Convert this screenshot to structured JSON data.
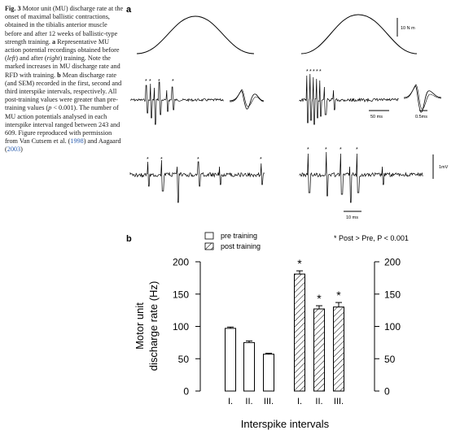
{
  "caption": {
    "fig_label": "Fig. 3",
    "seg1": "Motor unit (MU) discharge rate at the onset of maximal ballistic contractions, obtained in the tibialis anterior muscle before and after 12 weeks of ballistic-type strength training.",
    "a_label": "a",
    "seg2": "Representative MU action potential recordings obtained before (",
    "left_word": "left",
    "seg3": ") and after (",
    "right_word": "right",
    "seg4": ") training. Note the marked increases in MU discharge rate and RFD with training.",
    "b_label": "b",
    "seg5": "Mean discharge rate (and SEM) recorded in the first, second and third interspike intervals, respectively. All post-training values were greater than pre-training values (",
    "p_var": "p",
    "seg6": " < 0.001). The number of MU action potentials analysed in each interspike interval ranged between 243 and 609. Figure reproduced with permission from Van Cutsem et al. (",
    "ref1": "1998",
    "seg7": ") and Aagaard (",
    "ref2": "2003",
    "seg8": ")"
  },
  "panel_a": {
    "label": "a",
    "force_scale": "10 N m",
    "time_scale_1": "50 ms",
    "time_scale_2": "0.5ms",
    "voltage_scale": "1mV",
    "time_scale_3": "10 ms",
    "star": "*"
  },
  "panel_b": {
    "label": "b",
    "legend": {
      "pre": "pre training",
      "post": "post training",
      "note": "* Post > Pre, P < 0.001"
    }
  },
  "chart_data": {
    "type": "bar",
    "categories": [
      "I.",
      "II.",
      "III.",
      "I.",
      "II.",
      "III."
    ],
    "series": [
      {
        "name": "pre training",
        "values": [
          97,
          75,
          57,
          null,
          null,
          null
        ],
        "errors": [
          2,
          2.5,
          1.5,
          null,
          null,
          null
        ],
        "style": "open"
      },
      {
        "name": "post training",
        "values": [
          null,
          null,
          null,
          181,
          127,
          130
        ],
        "errors": [
          null,
          null,
          null,
          5,
          5,
          7
        ],
        "style": "hatched",
        "significant": [
          false,
          false,
          false,
          true,
          true,
          true
        ]
      }
    ],
    "ylabel": "Motor unit discharge rate (Hz)",
    "ylabel_line1": "Motor unit",
    "ylabel_line2": "discharge rate  (Hz)",
    "xlabel": "Interspike intervals",
    "ylim": [
      0,
      200
    ],
    "yticks": [
      0,
      50,
      100,
      150,
      200
    ],
    "grid": false,
    "axes": "left-and-right"
  }
}
